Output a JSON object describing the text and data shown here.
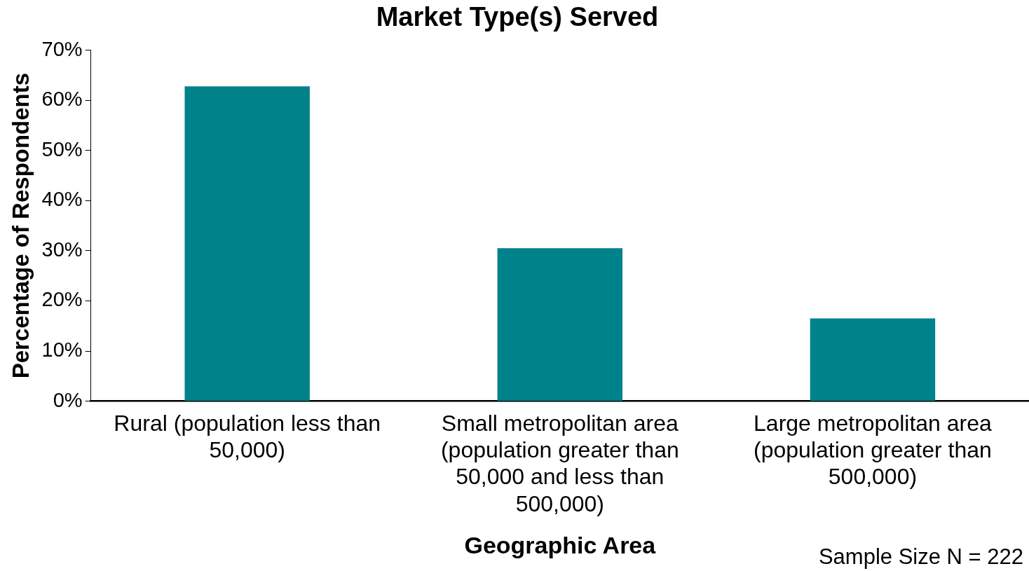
{
  "chart_data": {
    "type": "bar",
    "title": "Market Type(s) Served",
    "xlabel": "Geographic Area",
    "ylabel": "Percentage of Respondents",
    "categories": [
      "Rural (population less than 50,000)",
      "Small metropolitan area (population greater than 50,000 and less than 500,000)",
      "Large metropolitan area (population greater than 500,000)"
    ],
    "values": [
      62.8,
      30.5,
      16.5
    ],
    "color": "#00828a",
    "ylim": [
      0,
      70
    ],
    "yticks": [
      {
        "value": 0,
        "label": "0%"
      },
      {
        "value": 10,
        "label": "10%"
      },
      {
        "value": 20,
        "label": "20%"
      },
      {
        "value": 30,
        "label": "30%"
      },
      {
        "value": 40,
        "label": "40%"
      },
      {
        "value": 50,
        "label": "50%"
      },
      {
        "value": 60,
        "label": "60%"
      },
      {
        "value": 70,
        "label": "70%"
      }
    ],
    "grid": false,
    "legend": false,
    "annotations": [
      "Sample Size N = 222"
    ]
  }
}
